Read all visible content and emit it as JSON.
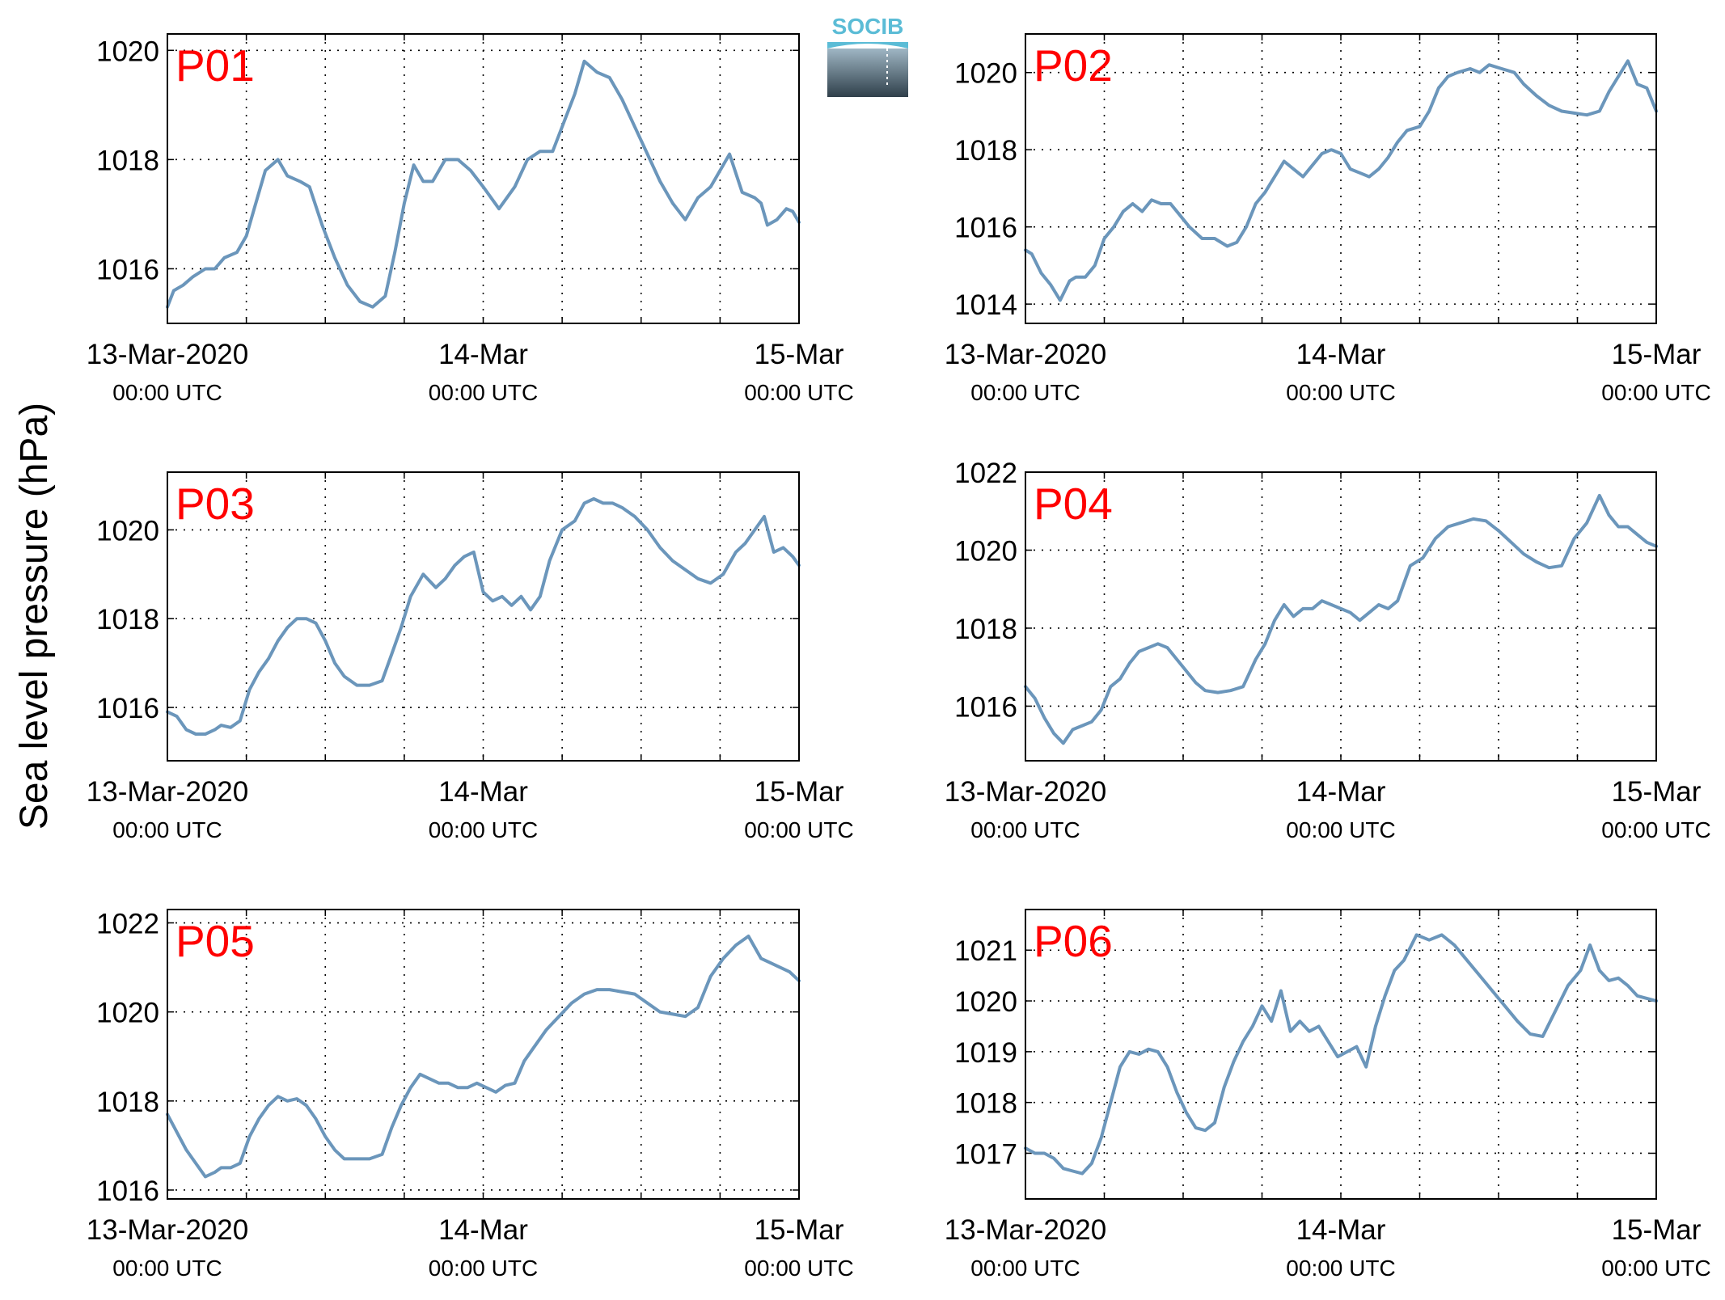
{
  "figure": {
    "ylabel": "Sea level pressure (hPa)",
    "logo_text": "SOCIB"
  },
  "style": {
    "line_color": "#6b96bb",
    "label_color": "#ff0000",
    "axis_color": "#000000",
    "grid_color": "#000000",
    "logo_top_color": "#5bbcd6",
    "logo_bottom_color": "#2f3f4a"
  },
  "x_axis": {
    "range_days": [
      0,
      2
    ],
    "ticks": [
      {
        "day": 0,
        "line1": "13-Mar-2020",
        "line2": "00:00 UTC"
      },
      {
        "day": 1,
        "line1": "14-Mar",
        "line2": "00:00 UTC"
      },
      {
        "day": 2,
        "line1": "15-Mar",
        "line2": "00:00 UTC"
      }
    ],
    "grid_days": [
      0.25,
      0.5,
      0.75,
      1.0,
      1.25,
      1.5,
      1.75
    ]
  },
  "chart_data": [
    {
      "type": "line",
      "label": "P01",
      "ylim": [
        1015,
        1020.3
      ],
      "yticks": [
        1016,
        1018,
        1020
      ],
      "x": [
        0,
        0.02,
        0.05,
        0.08,
        0.12,
        0.15,
        0.18,
        0.22,
        0.25,
        0.28,
        0.31,
        0.35,
        0.38,
        0.42,
        0.45,
        0.49,
        0.53,
        0.57,
        0.61,
        0.65,
        0.69,
        0.72,
        0.75,
        0.78,
        0.81,
        0.84,
        0.88,
        0.92,
        0.96,
        1.0,
        1.05,
        1.1,
        1.14,
        1.18,
        1.22,
        1.25,
        1.29,
        1.32,
        1.36,
        1.4,
        1.44,
        1.48,
        1.52,
        1.56,
        1.6,
        1.64,
        1.68,
        1.72,
        1.75,
        1.78,
        1.82,
        1.86,
        1.88,
        1.9,
        1.93,
        1.96,
        1.98,
        2.0
      ],
      "values": [
        1015.3,
        1015.6,
        1015.7,
        1015.85,
        1016.0,
        1016.0,
        1016.2,
        1016.3,
        1016.6,
        1017.2,
        1017.8,
        1018.0,
        1017.7,
        1017.6,
        1017.5,
        1016.8,
        1016.2,
        1015.7,
        1015.4,
        1015.3,
        1015.5,
        1016.3,
        1017.2,
        1017.9,
        1017.6,
        1017.6,
        1018.0,
        1018.0,
        1017.8,
        1017.5,
        1017.1,
        1017.5,
        1018.0,
        1018.15,
        1018.15,
        1018.6,
        1019.2,
        1019.8,
        1019.6,
        1019.5,
        1019.1,
        1018.6,
        1018.1,
        1017.6,
        1017.2,
        1016.9,
        1017.3,
        1017.5,
        1017.8,
        1018.1,
        1017.4,
        1017.3,
        1017.2,
        1016.8,
        1016.9,
        1017.1,
        1017.05,
        1016.85
      ]
    },
    {
      "type": "line",
      "label": "P02",
      "ylim": [
        1013.5,
        1021
      ],
      "yticks": [
        1014,
        1016,
        1018,
        1020
      ],
      "x": [
        0,
        0.02,
        0.05,
        0.08,
        0.11,
        0.14,
        0.16,
        0.19,
        0.22,
        0.25,
        0.28,
        0.31,
        0.34,
        0.37,
        0.4,
        0.43,
        0.46,
        0.49,
        0.52,
        0.56,
        0.6,
        0.64,
        0.67,
        0.7,
        0.73,
        0.76,
        0.79,
        0.82,
        0.85,
        0.88,
        0.91,
        0.94,
        0.97,
        1.0,
        1.03,
        1.06,
        1.09,
        1.12,
        1.15,
        1.18,
        1.21,
        1.25,
        1.28,
        1.31,
        1.34,
        1.37,
        1.41,
        1.44,
        1.47,
        1.51,
        1.55,
        1.58,
        1.62,
        1.66,
        1.7,
        1.74,
        1.78,
        1.82,
        1.85,
        1.88,
        1.91,
        1.94,
        1.97,
        2.0
      ],
      "values": [
        1015.4,
        1015.3,
        1014.8,
        1014.5,
        1014.1,
        1014.6,
        1014.7,
        1014.7,
        1015.0,
        1015.7,
        1016.0,
        1016.4,
        1016.6,
        1016.4,
        1016.7,
        1016.6,
        1016.6,
        1016.3,
        1016.0,
        1015.7,
        1015.7,
        1015.5,
        1015.6,
        1016.0,
        1016.6,
        1016.9,
        1017.3,
        1017.7,
        1017.5,
        1017.3,
        1017.6,
        1017.9,
        1018.0,
        1017.9,
        1017.5,
        1017.4,
        1017.3,
        1017.5,
        1017.8,
        1018.2,
        1018.5,
        1018.6,
        1019.0,
        1019.6,
        1019.9,
        1020.0,
        1020.1,
        1020.0,
        1020.2,
        1020.1,
        1020.0,
        1019.7,
        1019.4,
        1019.15,
        1019.0,
        1018.95,
        1018.9,
        1019.0,
        1019.5,
        1019.9,
        1020.3,
        1019.7,
        1019.6,
        1019.0
      ]
    },
    {
      "type": "line",
      "label": "P03",
      "ylim": [
        1014.8,
        1021.3
      ],
      "yticks": [
        1016,
        1018,
        1020
      ],
      "x": [
        0,
        0.03,
        0.06,
        0.09,
        0.12,
        0.15,
        0.17,
        0.2,
        0.23,
        0.26,
        0.29,
        0.32,
        0.35,
        0.38,
        0.41,
        0.44,
        0.47,
        0.5,
        0.53,
        0.56,
        0.6,
        0.64,
        0.68,
        0.71,
        0.74,
        0.77,
        0.81,
        0.85,
        0.88,
        0.91,
        0.94,
        0.97,
        1.0,
        1.03,
        1.06,
        1.09,
        1.12,
        1.15,
        1.18,
        1.21,
        1.25,
        1.29,
        1.32,
        1.35,
        1.38,
        1.41,
        1.44,
        1.48,
        1.52,
        1.56,
        1.6,
        1.64,
        1.68,
        1.72,
        1.76,
        1.8,
        1.83,
        1.86,
        1.89,
        1.92,
        1.95,
        1.98,
        2.0
      ],
      "values": [
        1015.9,
        1015.8,
        1015.5,
        1015.4,
        1015.4,
        1015.5,
        1015.6,
        1015.55,
        1015.7,
        1016.4,
        1016.8,
        1017.1,
        1017.5,
        1017.8,
        1018.0,
        1018.0,
        1017.9,
        1017.5,
        1017.0,
        1016.7,
        1016.5,
        1016.5,
        1016.6,
        1017.2,
        1017.8,
        1018.5,
        1019.0,
        1018.7,
        1018.9,
        1019.2,
        1019.4,
        1019.5,
        1018.6,
        1018.4,
        1018.5,
        1018.3,
        1018.5,
        1018.2,
        1018.5,
        1019.3,
        1020.0,
        1020.2,
        1020.6,
        1020.7,
        1020.6,
        1020.6,
        1020.5,
        1020.3,
        1020.0,
        1019.6,
        1019.3,
        1019.1,
        1018.9,
        1018.8,
        1019.0,
        1019.5,
        1019.7,
        1020.0,
        1020.3,
        1019.5,
        1019.6,
        1019.4,
        1019.2
      ]
    },
    {
      "type": "line",
      "label": "P04",
      "ylim": [
        1014.6,
        1022
      ],
      "yticks": [
        1016,
        1018,
        1020,
        1022
      ],
      "x": [
        0,
        0.03,
        0.06,
        0.09,
        0.12,
        0.15,
        0.18,
        0.21,
        0.24,
        0.27,
        0.3,
        0.33,
        0.36,
        0.39,
        0.42,
        0.45,
        0.48,
        0.51,
        0.54,
        0.57,
        0.61,
        0.65,
        0.69,
        0.73,
        0.76,
        0.79,
        0.82,
        0.85,
        0.88,
        0.91,
        0.94,
        0.97,
        1.0,
        1.03,
        1.06,
        1.09,
        1.12,
        1.15,
        1.18,
        1.22,
        1.26,
        1.3,
        1.34,
        1.38,
        1.42,
        1.46,
        1.5,
        1.54,
        1.58,
        1.62,
        1.66,
        1.7,
        1.74,
        1.78,
        1.82,
        1.85,
        1.88,
        1.91,
        1.94,
        1.97,
        2.0
      ],
      "values": [
        1016.5,
        1016.2,
        1015.7,
        1015.3,
        1015.05,
        1015.4,
        1015.5,
        1015.6,
        1015.9,
        1016.5,
        1016.7,
        1017.1,
        1017.4,
        1017.5,
        1017.6,
        1017.5,
        1017.2,
        1016.9,
        1016.6,
        1016.4,
        1016.35,
        1016.4,
        1016.5,
        1017.2,
        1017.6,
        1018.2,
        1018.6,
        1018.3,
        1018.5,
        1018.5,
        1018.7,
        1018.6,
        1018.5,
        1018.4,
        1018.2,
        1018.4,
        1018.6,
        1018.5,
        1018.7,
        1019.6,
        1019.8,
        1020.3,
        1020.6,
        1020.7,
        1020.8,
        1020.75,
        1020.5,
        1020.2,
        1019.9,
        1019.7,
        1019.55,
        1019.6,
        1020.3,
        1020.7,
        1021.4,
        1020.9,
        1020.6,
        1020.6,
        1020.4,
        1020.2,
        1020.1
      ]
    },
    {
      "type": "line",
      "label": "P05",
      "ylim": [
        1015.8,
        1022.3
      ],
      "yticks": [
        1016,
        1018,
        1020,
        1022
      ],
      "x": [
        0,
        0.03,
        0.06,
        0.09,
        0.12,
        0.15,
        0.17,
        0.2,
        0.23,
        0.26,
        0.29,
        0.32,
        0.35,
        0.38,
        0.41,
        0.44,
        0.47,
        0.5,
        0.53,
        0.56,
        0.6,
        0.64,
        0.68,
        0.71,
        0.74,
        0.77,
        0.8,
        0.83,
        0.86,
        0.89,
        0.92,
        0.95,
        0.98,
        1.01,
        1.04,
        1.07,
        1.1,
        1.13,
        1.16,
        1.2,
        1.24,
        1.28,
        1.32,
        1.36,
        1.4,
        1.44,
        1.48,
        1.52,
        1.56,
        1.6,
        1.64,
        1.68,
        1.72,
        1.76,
        1.8,
        1.84,
        1.88,
        1.91,
        1.94,
        1.97,
        2.0
      ],
      "values": [
        1017.7,
        1017.3,
        1016.9,
        1016.6,
        1016.3,
        1016.4,
        1016.5,
        1016.5,
        1016.6,
        1017.2,
        1017.6,
        1017.9,
        1018.1,
        1018.0,
        1018.05,
        1017.9,
        1017.6,
        1017.2,
        1016.9,
        1016.7,
        1016.7,
        1016.7,
        1016.8,
        1017.4,
        1017.9,
        1018.3,
        1018.6,
        1018.5,
        1018.4,
        1018.4,
        1018.3,
        1018.3,
        1018.4,
        1018.3,
        1018.2,
        1018.35,
        1018.4,
        1018.9,
        1019.2,
        1019.6,
        1019.9,
        1020.2,
        1020.4,
        1020.5,
        1020.5,
        1020.45,
        1020.4,
        1020.2,
        1020.0,
        1019.95,
        1019.9,
        1020.1,
        1020.8,
        1021.2,
        1021.5,
        1021.7,
        1021.2,
        1021.1,
        1021.0,
        1020.9,
        1020.7
      ]
    },
    {
      "type": "line",
      "label": "P06",
      "ylim": [
        1016.1,
        1021.8
      ],
      "yticks": [
        1017,
        1018,
        1019,
        1020,
        1021
      ],
      "x": [
        0,
        0.03,
        0.06,
        0.09,
        0.12,
        0.15,
        0.18,
        0.21,
        0.24,
        0.27,
        0.3,
        0.33,
        0.36,
        0.39,
        0.42,
        0.45,
        0.48,
        0.51,
        0.54,
        0.57,
        0.6,
        0.63,
        0.66,
        0.69,
        0.72,
        0.75,
        0.78,
        0.81,
        0.84,
        0.87,
        0.9,
        0.93,
        0.96,
        0.99,
        1.02,
        1.05,
        1.08,
        1.11,
        1.14,
        1.17,
        1.2,
        1.24,
        1.28,
        1.32,
        1.36,
        1.4,
        1.44,
        1.48,
        1.52,
        1.56,
        1.6,
        1.64,
        1.68,
        1.72,
        1.76,
        1.79,
        1.82,
        1.85,
        1.88,
        1.91,
        1.94,
        1.97,
        2.0
      ],
      "values": [
        1017.1,
        1017.0,
        1017.0,
        1016.9,
        1016.7,
        1016.65,
        1016.6,
        1016.8,
        1017.3,
        1018.0,
        1018.7,
        1019.0,
        1018.95,
        1019.05,
        1019.0,
        1018.7,
        1018.2,
        1017.8,
        1017.5,
        1017.45,
        1017.6,
        1018.3,
        1018.8,
        1019.2,
        1019.5,
        1019.9,
        1019.6,
        1020.2,
        1019.4,
        1019.6,
        1019.4,
        1019.5,
        1019.2,
        1018.9,
        1019.0,
        1019.1,
        1018.7,
        1019.5,
        1020.1,
        1020.6,
        1020.8,
        1021.3,
        1021.2,
        1021.3,
        1021.1,
        1020.8,
        1020.5,
        1020.2,
        1019.9,
        1019.6,
        1019.35,
        1019.3,
        1019.8,
        1020.3,
        1020.6,
        1021.1,
        1020.6,
        1020.4,
        1020.45,
        1020.3,
        1020.1,
        1020.05,
        1020.0
      ]
    }
  ]
}
